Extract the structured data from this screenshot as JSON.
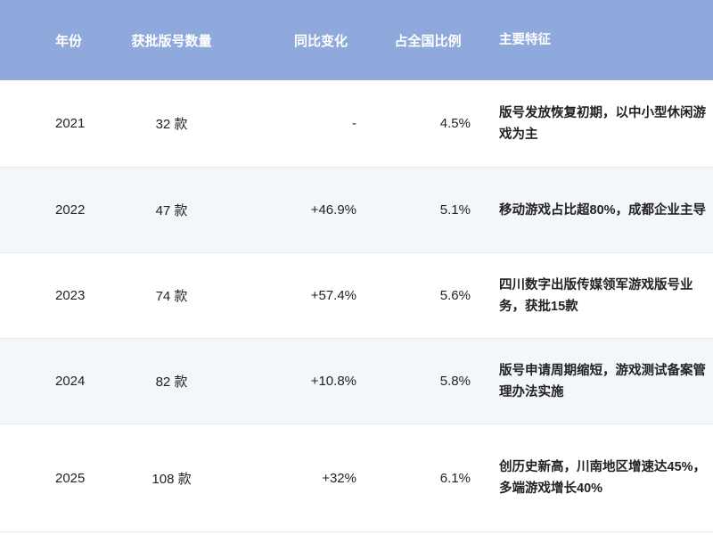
{
  "table": {
    "headers": [
      "年份",
      "获批版号数量",
      "同比变化",
      "占全国比例",
      "主要特征"
    ],
    "rows": [
      {
        "year": "2021",
        "count": "32 款",
        "change": "-",
        "share": "4.5%",
        "feature": "版号发放恢复初期，以中小型休闲游戏为主"
      },
      {
        "year": "2022",
        "count": "47 款",
        "change": "+46.9%",
        "share": "5.1%",
        "feature": "移动游戏占比超80%，成都企业主导"
      },
      {
        "year": "2023",
        "count": "74 款",
        "change": "+57.4%",
        "share": "5.6%",
        "feature": "四川数字出版传媒领军游戏版号业务，获批15款"
      },
      {
        "year": "2024",
        "count": "82 款",
        "change": "+10.8%",
        "share": "5.8%",
        "feature": "版号申请周期缩短，游戏测试备案管理办法实施"
      },
      {
        "year": "2025",
        "count": "108 款",
        "change": "+32%",
        "share": "6.1%",
        "feature": "创历史新高，川南地区增速达45%，多端游戏增长40%"
      }
    ]
  },
  "colors": {
    "header_bg": "#8fa9dd",
    "alt_row_bg": "#f3f6fb"
  }
}
